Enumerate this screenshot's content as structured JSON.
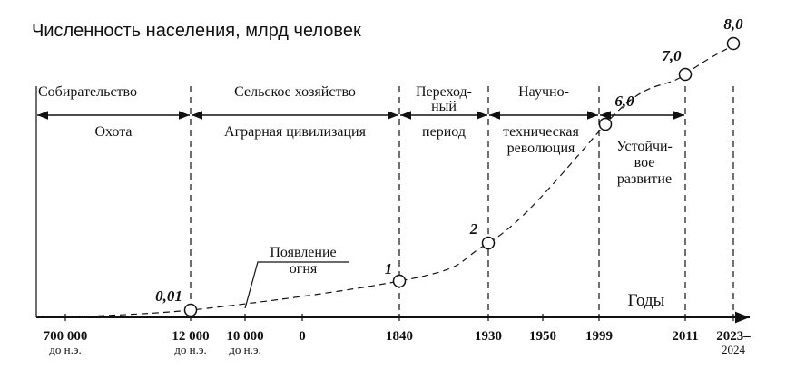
{
  "title": "Численность населения, млрд человек",
  "eras": [
    {
      "top": [
        "Собирательство"
      ],
      "bottom": [
        "Охота"
      ]
    },
    {
      "top": [
        "Сельское хозяйство"
      ],
      "bottom": [
        "Аграрная цивилизация"
      ]
    },
    {
      "top": [
        "Переход-",
        "ный"
      ],
      "bottom": [
        "период"
      ]
    },
    {
      "top": [
        "Научно-"
      ],
      "bottom": [
        "техническая",
        "революция"
      ]
    },
    {
      "top": [],
      "bottom": [
        "Устойчи-",
        "вое",
        "развитие"
      ]
    }
  ],
  "axis": {
    "title": "Годы",
    "ticks": [
      [
        "700 000",
        "до н.э."
      ],
      [
        "12 000",
        "до н.э."
      ],
      [
        "10 000",
        "до н.э."
      ],
      [
        "0"
      ],
      [
        "1840"
      ],
      [
        "1930"
      ],
      [
        "1950"
      ],
      [
        "1999"
      ],
      [
        "2011"
      ],
      [
        "2023–",
        "2024"
      ]
    ]
  },
  "points": [
    "0,01",
    "1",
    "2",
    "6,0",
    "7,0",
    "8,0"
  ],
  "annotation": [
    "Появление",
    "огня"
  ]
}
